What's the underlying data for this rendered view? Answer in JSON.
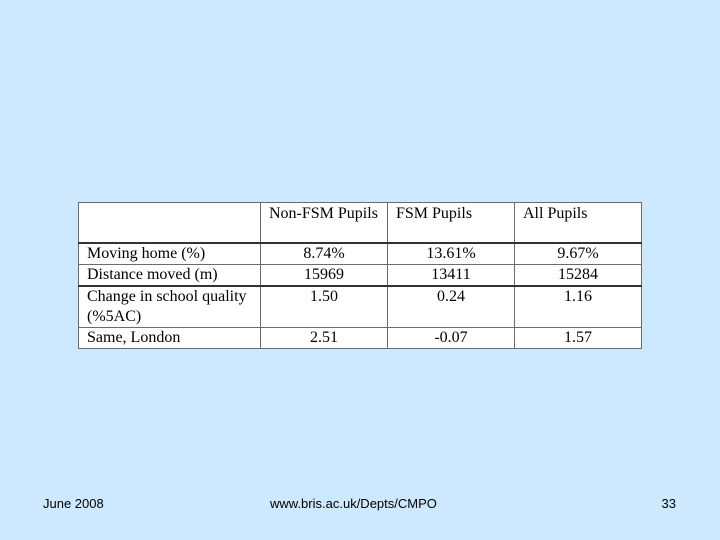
{
  "table": {
    "headers": [
      "",
      "Non-FSM Pupils",
      "FSM Pupils",
      "All Pupils"
    ],
    "rows": [
      {
        "label": "Moving home (%)",
        "values": [
          "8.74%",
          "13.61%",
          "9.67%"
        ]
      },
      {
        "label": "Distance moved (m)",
        "values": [
          "15969",
          "13411",
          "15284"
        ]
      },
      {
        "label": "Change in school quality (%5AC)",
        "values": [
          "1.50",
          "0.24",
          "1.16"
        ]
      },
      {
        "label": "Same, London",
        "values": [
          "2.51",
          "-0.07",
          "1.57"
        ]
      }
    ]
  },
  "footer": {
    "date": "June 2008",
    "url": "www.bris.ac.uk/Depts/CMPO",
    "page": "33"
  }
}
